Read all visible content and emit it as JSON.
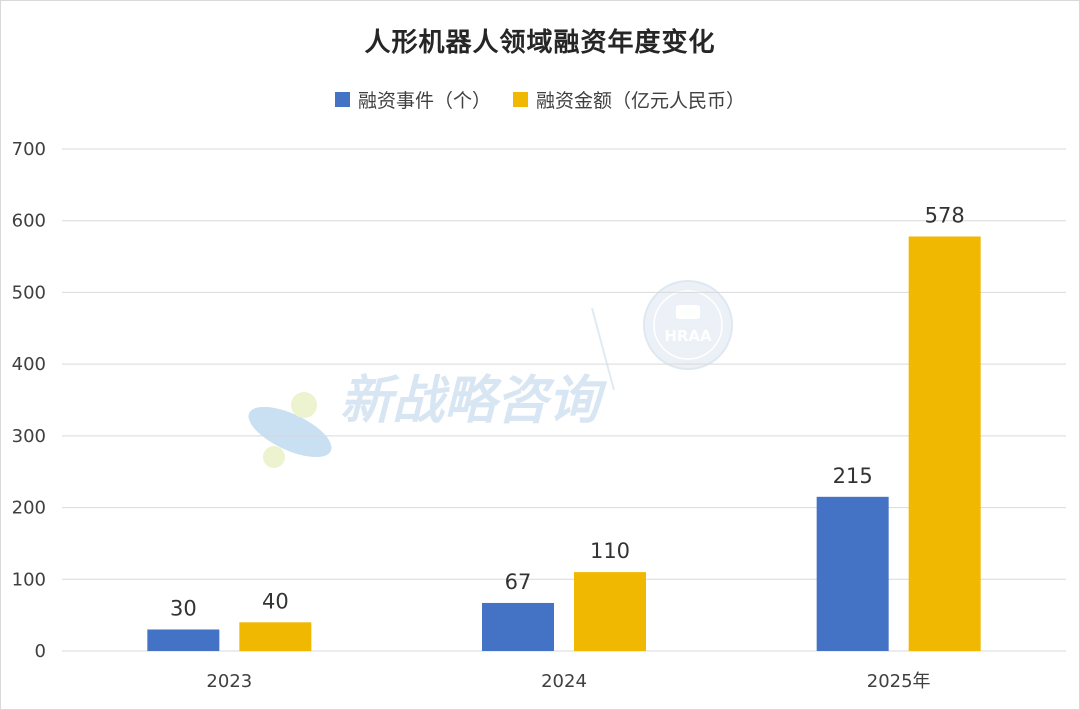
{
  "chart_data": {
    "type": "bar",
    "title": "人形机器人领域融资年度变化",
    "categories": [
      "2023",
      "2024",
      "2025年"
    ],
    "series": [
      {
        "name": "融资事件（个）",
        "values": [
          30,
          67,
          215
        ],
        "color": "#4472C4"
      },
      {
        "name": "融资金额（亿元人民币）",
        "values": [
          40,
          110,
          578
        ],
        "color": "#F0B800"
      }
    ],
    "ylim": [
      0,
      700
    ],
    "yticks": [
      0,
      100,
      200,
      300,
      400,
      500,
      600,
      700
    ],
    "grid": true,
    "legend_position": "top-center",
    "data_labels": true
  },
  "watermark": {
    "text": "新战略咨询",
    "badge_text": "HRAA"
  }
}
